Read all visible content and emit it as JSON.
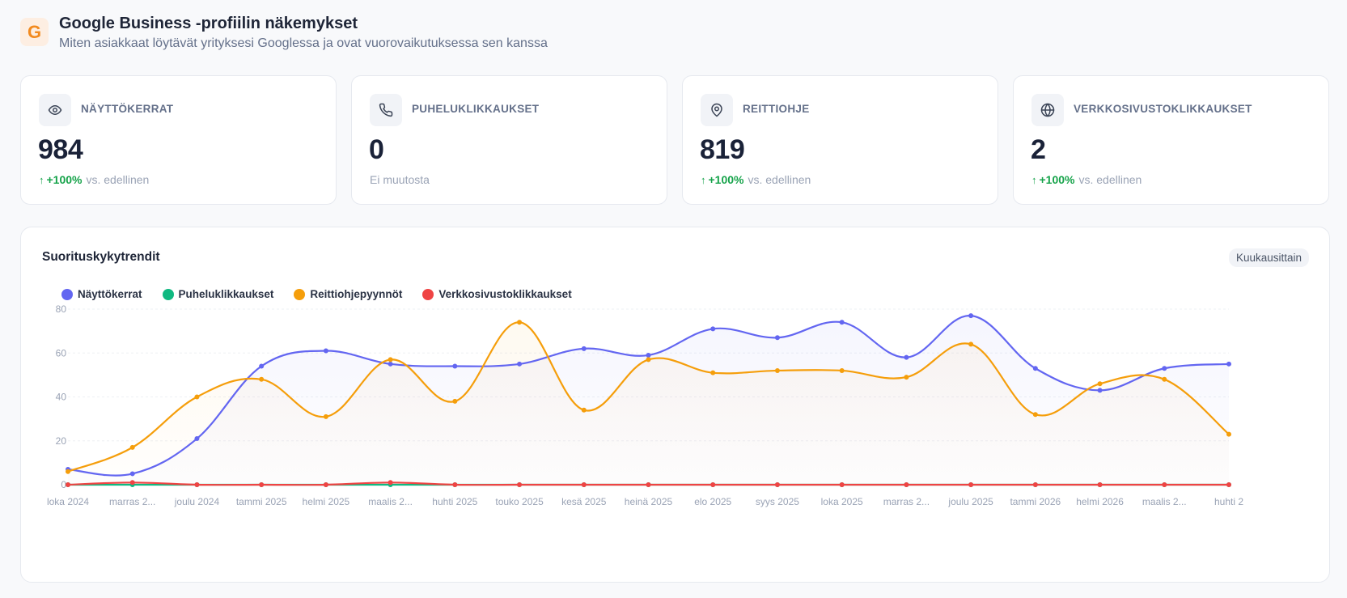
{
  "header": {
    "logo_letter": "G",
    "title": "Google Business -profiilin näkemykset",
    "subtitle": "Miten asiakkaat löytävät yrityksesi Googlessa ja ovat vuorovaikutuksessa sen kanssa"
  },
  "cards": [
    {
      "label": "NÄYTTÖKERRAT",
      "icon": "eye-icon",
      "value": "984",
      "change": "+100%",
      "change_suffix": "vs. edellinen"
    },
    {
      "label": "PUHELUKLIKKAUKSET",
      "icon": "phone-icon",
      "value": "0",
      "change": "",
      "change_suffix": "Ei muutosta"
    },
    {
      "label": "REITTIOHJE",
      "icon": "map-pin-icon",
      "value": "819",
      "change": "+100%",
      "change_suffix": "vs. edellinen"
    },
    {
      "label": "VERKKOSIVUSTOKLIKKAUKSET",
      "icon": "globe-icon",
      "value": "2",
      "change": "+100%",
      "change_suffix": "vs. edellinen"
    }
  ],
  "panel": {
    "title": "Suorituskykytrendit",
    "badge": "Kuukausittain"
  },
  "colors": {
    "impressions": "#6366f1",
    "calls": "#10b981",
    "directions": "#f59e0b",
    "website": "#ef4444",
    "up": "#16a34a"
  },
  "chart_data": {
    "type": "line",
    "categories": [
      "loka 2024",
      "marras 2...",
      "joulu 2024",
      "tammi 2025",
      "helmi 2025",
      "maalis 2...",
      "huhti 2025",
      "touko 2025",
      "kesä 2025",
      "heinä 2025",
      "elo 2025",
      "syys 2025",
      "loka 2025",
      "marras 2...",
      "joulu 2025",
      "tammi 2026",
      "helmi 2026",
      "maalis 2...",
      "huhti 2"
    ],
    "ylim": [
      0,
      80
    ],
    "yticks": [
      0,
      20,
      40,
      60,
      80
    ],
    "grid": true,
    "legend_position": "top-left",
    "series": [
      {
        "name": "Näyttökerrat",
        "color": "#6366f1",
        "values": [
          7,
          5,
          21,
          54,
          61,
          55,
          54,
          55,
          62,
          59,
          71,
          67,
          74,
          58,
          77,
          53,
          43,
          53,
          55
        ]
      },
      {
        "name": "Puheluklikkaukset",
        "color": "#10b981",
        "values": [
          0,
          0,
          0,
          0,
          0,
          0,
          0,
          0,
          0,
          0,
          0,
          0,
          0,
          0,
          0,
          0,
          0,
          0,
          0
        ]
      },
      {
        "name": "Reittiohjepyynnöt",
        "color": "#f59e0b",
        "values": [
          6,
          17,
          40,
          48,
          31,
          57,
          38,
          74,
          34,
          57,
          51,
          52,
          52,
          49,
          64,
          32,
          46,
          48,
          23
        ]
      },
      {
        "name": "Verkkosivustoklikkaukset",
        "color": "#ef4444",
        "values": [
          0,
          1,
          0,
          0,
          0,
          1,
          0,
          0,
          0,
          0,
          0,
          0,
          0,
          0,
          0,
          0,
          0,
          0,
          0
        ]
      }
    ]
  }
}
